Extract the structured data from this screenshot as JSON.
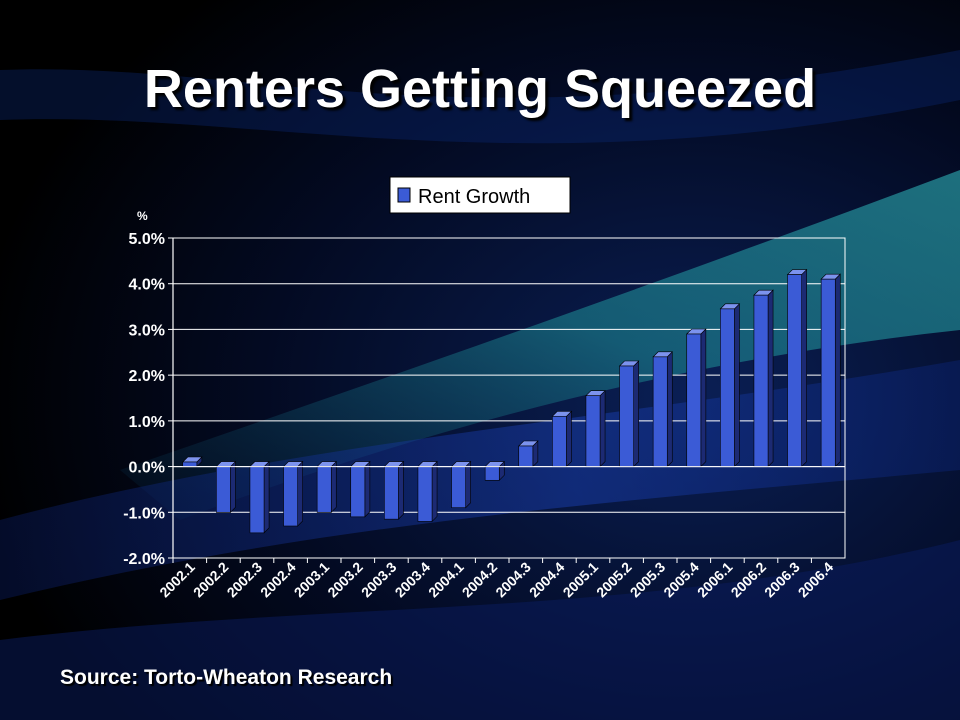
{
  "slide": {
    "title": "Renters Getting Squeezed",
    "source": "Source: Torto-Wheaton Research"
  },
  "chart_data": {
    "type": "bar",
    "unit_label": "%",
    "categories": [
      "2002.1",
      "2002.2",
      "2002.3",
      "2002.4",
      "2003.1",
      "2003.2",
      "2003.3",
      "2003.4",
      "2004.1",
      "2004.2",
      "2004.3",
      "2004.4",
      "2005.1",
      "2005.2",
      "2005.3",
      "2005.4",
      "2006.1",
      "2006.2",
      "2006.3",
      "2006.4"
    ],
    "series": [
      {
        "name": "Rent Growth",
        "values": [
          0.1,
          -1.0,
          -1.45,
          -1.3,
          -1.0,
          -1.1,
          -1.15,
          -1.2,
          -0.9,
          -0.3,
          0.45,
          1.1,
          1.55,
          2.2,
          2.4,
          2.9,
          3.45,
          3.75,
          4.2,
          4.1
        ]
      }
    ],
    "ylim": [
      -2.0,
      5.0
    ],
    "y_ticks": [
      5.0,
      4.0,
      3.0,
      2.0,
      1.0,
      0.0,
      -1.0,
      -2.0
    ],
    "y_tick_labels": [
      "5.0%",
      "4.0%",
      "3.0%",
      "2.0%",
      "1.0%",
      "0.0%",
      "-1.0%",
      "-2.0%"
    ],
    "grid": true,
    "legend_position": "top"
  },
  "colors": {
    "bar_front": "#3b5bd6",
    "bar_side": "#1c2a73",
    "bar_top": "#7c93ee",
    "axis": "#ffffff",
    "text": "#ffffff"
  }
}
